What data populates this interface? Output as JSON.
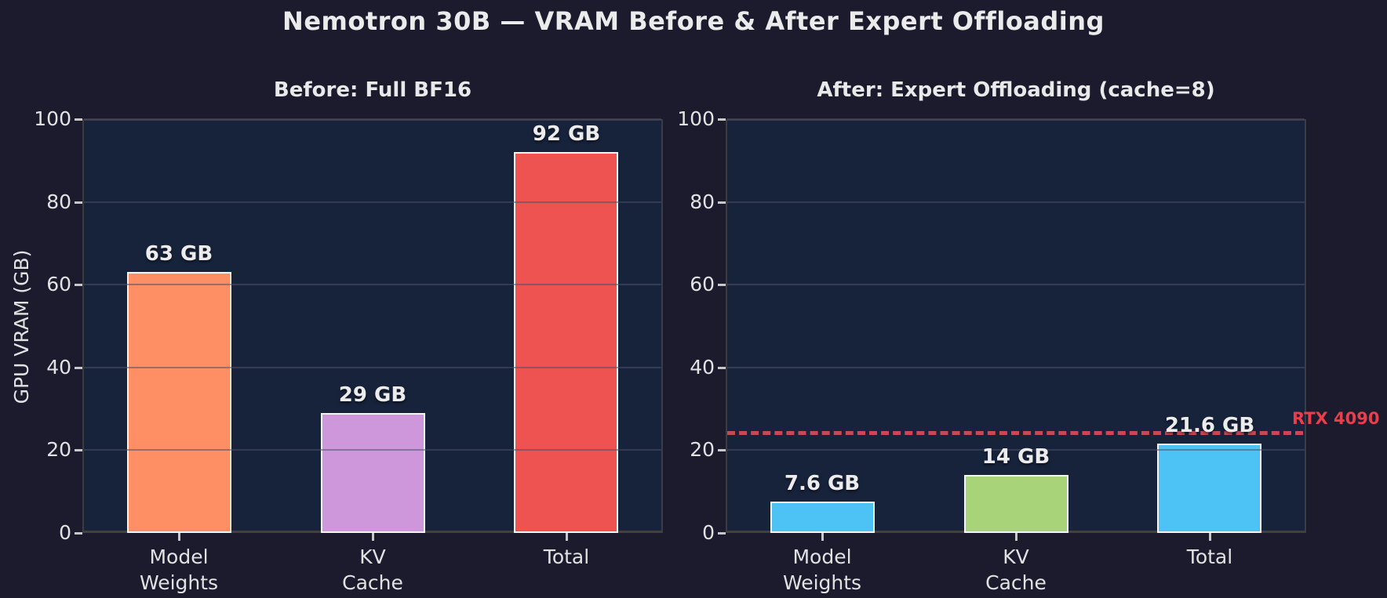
{
  "title": "Nemotron 30B — VRAM Before & After Expert Offloading",
  "colors": {
    "figure_bg": "#1b1b2d",
    "axes_bg": "#17223b",
    "grid": "#4a5168",
    "bar_edge": "#f5f5f5",
    "tick": "#c8c8c8",
    "text": "#e2e2e2",
    "title_text": "#ebebeb",
    "reference_line": "#c94952",
    "reference_label": "#e8404a"
  },
  "chart_data": [
    {
      "type": "bar",
      "title": "Before: Full BF16",
      "ylabel": "GPU VRAM (GB)",
      "categories": [
        "Model\nWeights",
        "KV\nCache",
        "Total"
      ],
      "values": [
        63,
        29,
        92
      ],
      "bar_labels": [
        "63 GB",
        "29 GB",
        "92 GB"
      ],
      "bar_colors": [
        "#fe8e63",
        "#cf97db",
        "#ee5352"
      ],
      "ylim": [
        0,
        100
      ],
      "yticks": [
        0,
        20,
        40,
        60,
        80,
        100
      ],
      "grid": true,
      "legend": "none"
    },
    {
      "type": "bar",
      "title": "After: Expert Offloading (cache=8)",
      "ylabel": "",
      "categories": [
        "Model\nWeights",
        "KV\nCache",
        "Total"
      ],
      "values": [
        7.6,
        14,
        21.6
      ],
      "bar_labels": [
        "7.6 GB",
        "14 GB",
        "21.6 GB"
      ],
      "bar_colors": [
        "#4cc2f5",
        "#a8d379",
        "#4cc2f5"
      ],
      "ylim": [
        0,
        100
      ],
      "yticks": [
        0,
        20,
        40,
        60,
        80,
        100
      ],
      "grid": true,
      "legend": "none",
      "reference_line": {
        "value": 24,
        "label": "RTX 4090",
        "style": "dashed"
      }
    }
  ]
}
